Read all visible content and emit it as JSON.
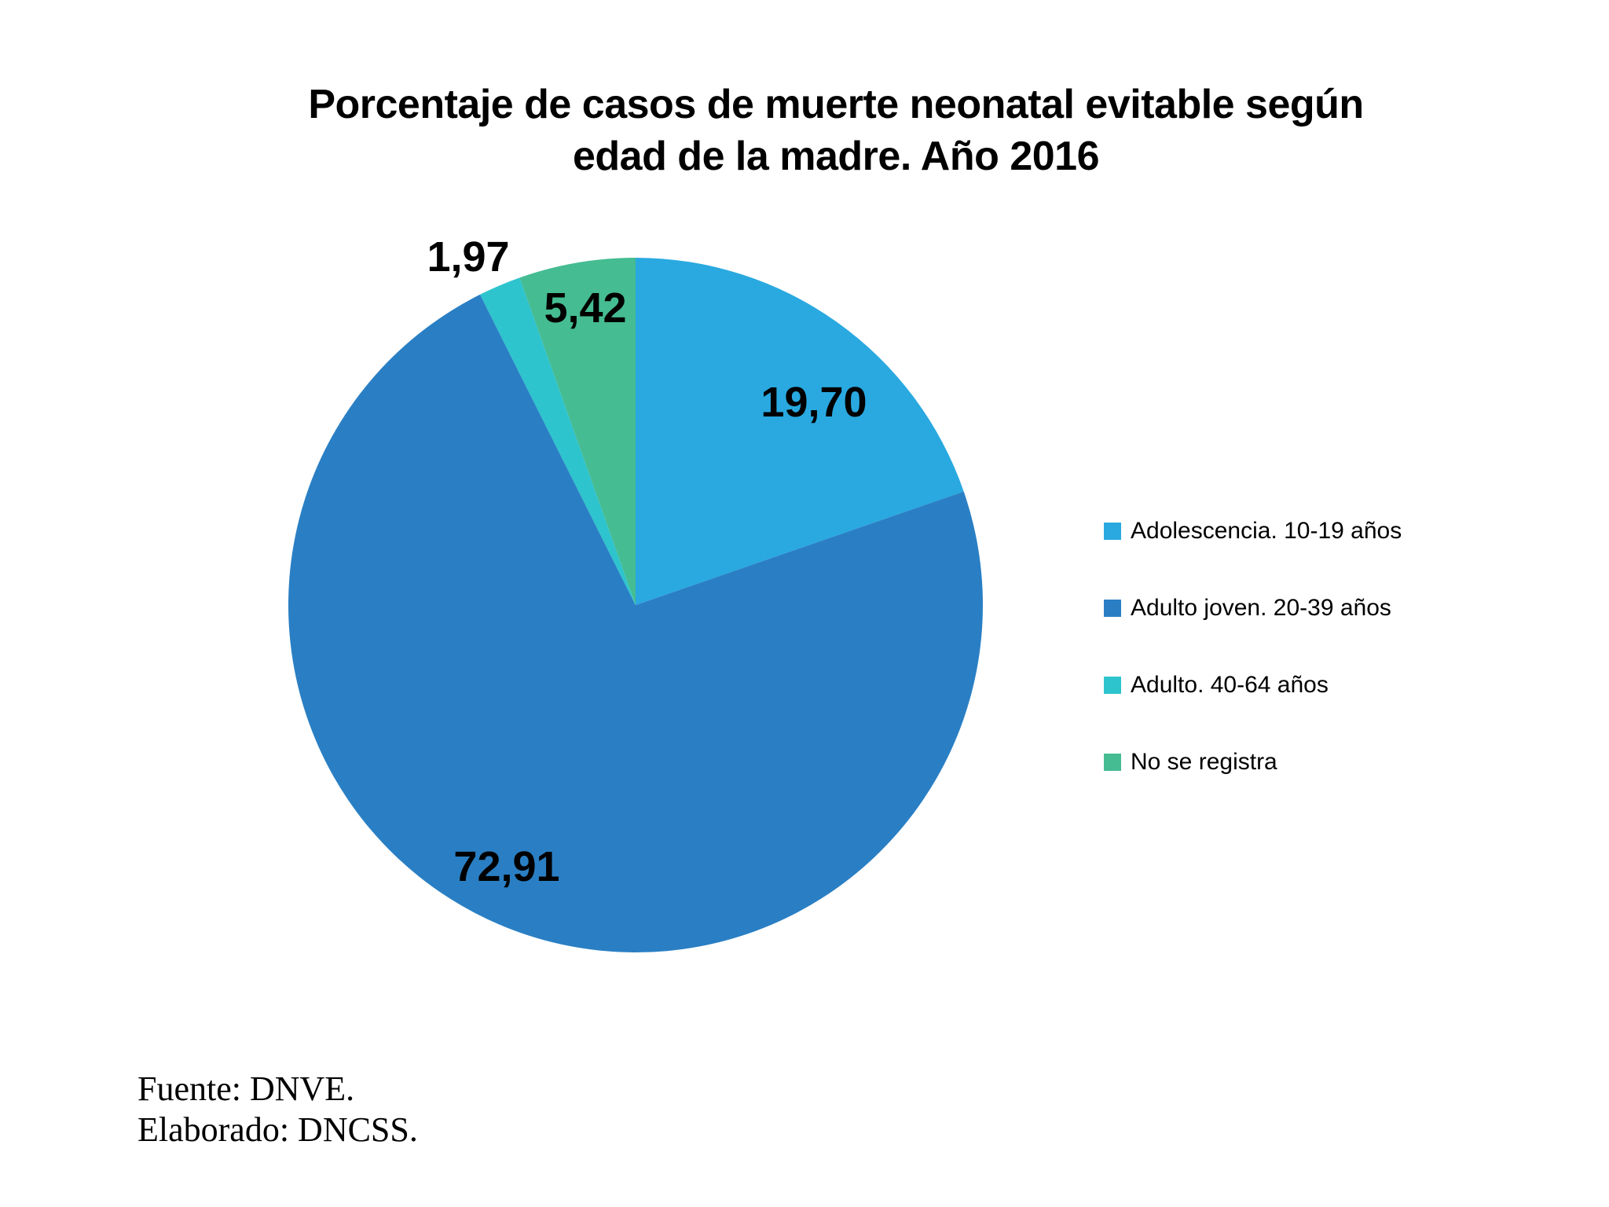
{
  "header": {
    "title_line1": "Porcentaje de casos de muerte neonatal evitable según",
    "title_line2": "edad de la madre. Año 2016"
  },
  "chart_data": {
    "type": "pie",
    "title": "Porcentaje de casos de muerte neonatal evitable según edad de la madre. Año 2016",
    "start_angle_deg": -90,
    "direction": "clockwise",
    "legend_position": "right",
    "slices": [
      {
        "label": "Adolescencia. 10-19 años",
        "value": 19.7,
        "display": "19,70",
        "color": "#29A9E0"
      },
      {
        "label": "Adulto joven. 20-39 años",
        "value": 72.91,
        "display": "72,91",
        "color": "#2A7FC4"
      },
      {
        "label": "Adulto. 40-64 años",
        "value": 1.97,
        "display": "1,97",
        "color": "#2EC4CE"
      },
      {
        "label": "No se registra",
        "value": 5.42,
        "display": "5,42",
        "color": "#45BC92"
      }
    ]
  },
  "footer": {
    "line1": "Fuente: DNVE.",
    "line2": "Elaborado: DNCSS."
  }
}
